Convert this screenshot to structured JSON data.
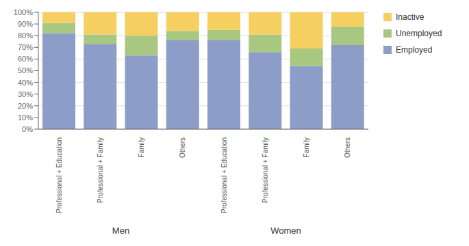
{
  "chart_data": {
    "type": "bar",
    "stacked": true,
    "categories": [
      "Professional + Education",
      "Professional + Family",
      "Family",
      "Others",
      "Professional + Education",
      "Professional + Family",
      "Family",
      "Others"
    ],
    "series": [
      {
        "name": "Employed",
        "color": "#8c9dc8",
        "values": [
          82,
          73,
          63,
          76,
          76,
          66,
          54,
          72
        ]
      },
      {
        "name": "Unemployed",
        "color": "#a8c882",
        "values": [
          9,
          8,
          17,
          8,
          9,
          15,
          15,
          16
        ]
      },
      {
        "name": "Inactive",
        "color": "#f5d060",
        "values": [
          9,
          19,
          20,
          16,
          15,
          19,
          31,
          12
        ]
      }
    ],
    "ylim": [
      0,
      100
    ],
    "yticks": [
      {
        "value": 0,
        "label": "0%"
      },
      {
        "value": 10,
        "label": "10%"
      },
      {
        "value": 20,
        "label": "20%"
      },
      {
        "value": 30,
        "label": "30%"
      },
      {
        "value": 40,
        "label": "40%"
      },
      {
        "value": 50,
        "label": "50%"
      },
      {
        "value": 60,
        "label": "60%"
      },
      {
        "value": 70,
        "label": "70%"
      },
      {
        "value": 80,
        "label": "80%"
      },
      {
        "value": 90,
        "label": "90%"
      },
      {
        "value": 100,
        "label": "100%"
      }
    ],
    "grid": true,
    "legend": "right",
    "annotations": [
      "Men",
      "Women"
    ]
  }
}
